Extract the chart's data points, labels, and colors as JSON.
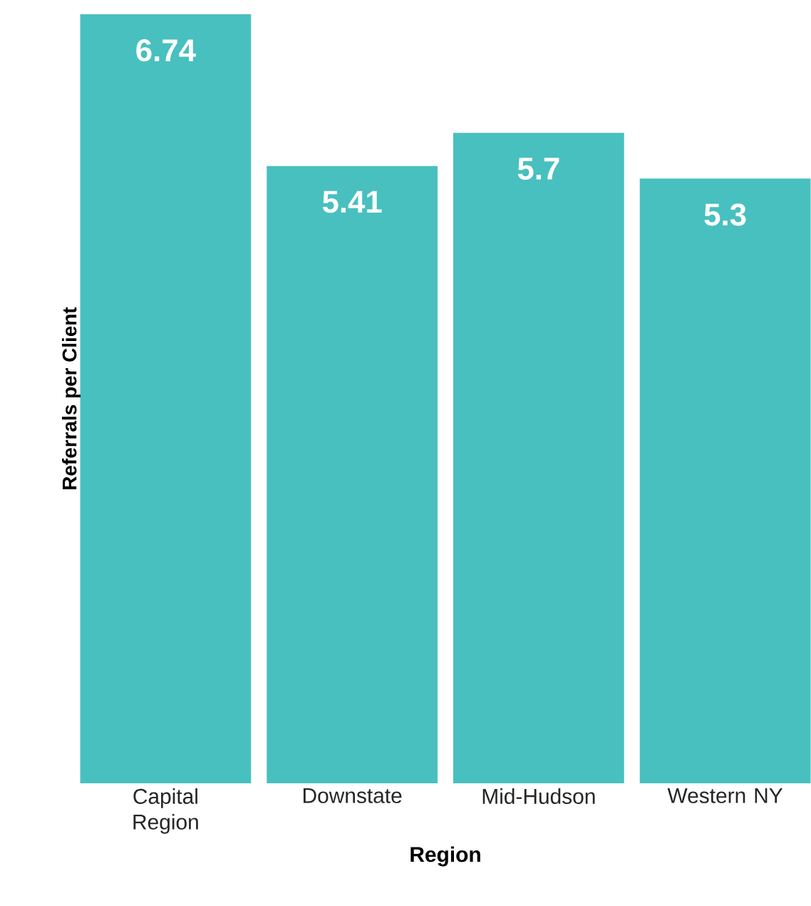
{
  "chart_data": {
    "type": "bar",
    "xlabel": "Region",
    "ylabel": "Referrals per Client",
    "categories": [
      "Capital Region",
      "Downstate",
      "Mid-Hudson",
      "Western NY"
    ],
    "values": [
      6.74,
      5.41,
      5.7,
      5.3
    ],
    "color": "#48c0bf",
    "data_labels": true
  }
}
